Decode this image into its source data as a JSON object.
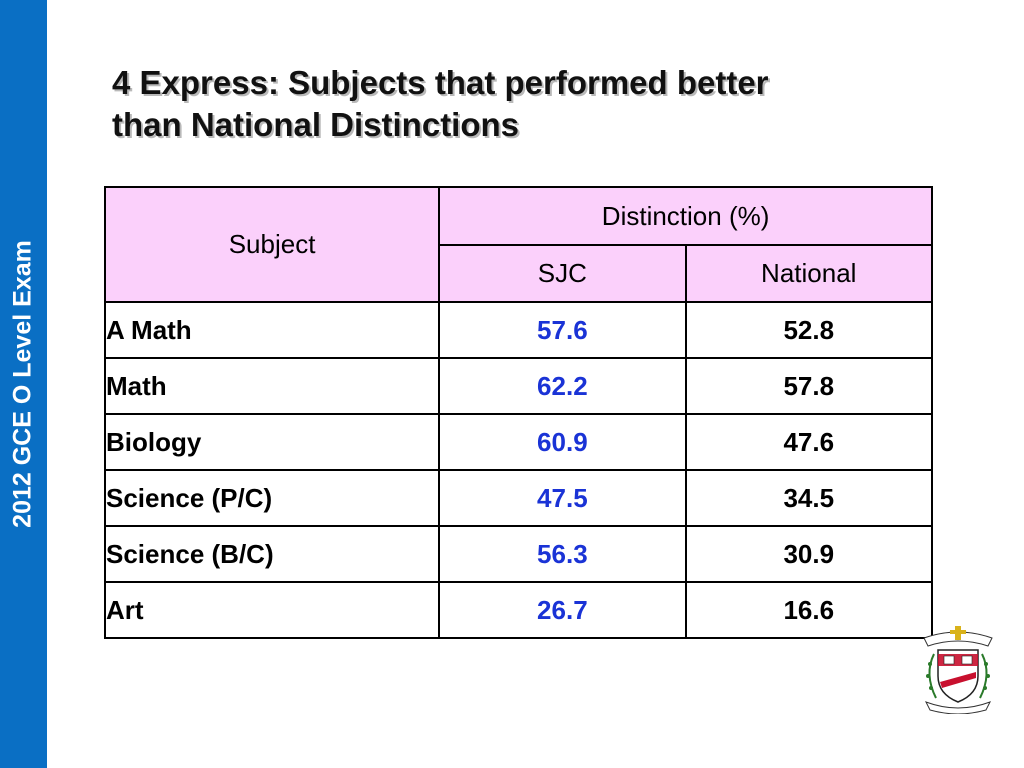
{
  "sidebar": {
    "text": "2012 GCE O Level Exam"
  },
  "title": {
    "line1": "4 Express: Subjects that performed better",
    "line2": "than National Distinctions"
  },
  "table": {
    "header_subject": "Subject",
    "header_group": "Distinction (%)",
    "header_sjc": "SJC",
    "header_national": "National",
    "rows": [
      {
        "subject": "A Math",
        "sjc": "57.6",
        "national": "52.8"
      },
      {
        "subject": "Math",
        "sjc": "62.2",
        "national": "57.8"
      },
      {
        "subject": "Biology",
        "sjc": "60.9",
        "national": "47.6"
      },
      {
        "subject": "Science (P/C)",
        "sjc": "47.5",
        "national": "34.5"
      },
      {
        "subject": "Science (B/C)",
        "sjc": "56.3",
        "national": "30.9"
      },
      {
        "subject": "Art",
        "sjc": "26.7",
        "national": "16.6"
      }
    ]
  },
  "colors": {
    "sidebar": "#0a6fc4",
    "header_fill": "#fbd0fb",
    "sjc_text": "#1a33d6",
    "crest_red": "#c8102e"
  },
  "logo": {
    "icon": "school-crest-icon"
  }
}
